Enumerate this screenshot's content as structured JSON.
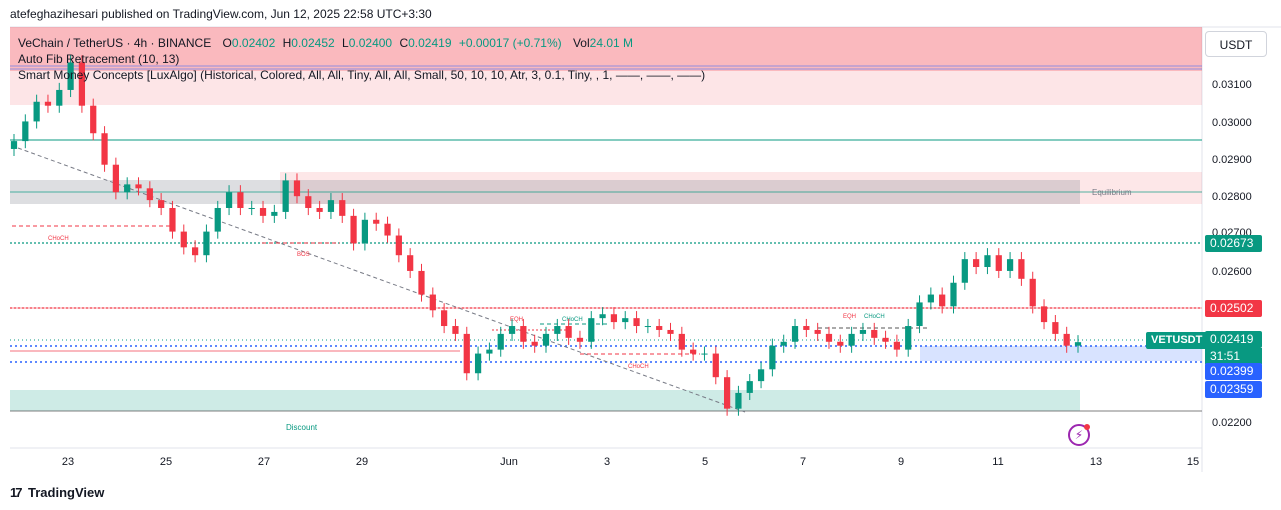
{
  "header": {
    "publisher_line": "atefeghazihesari published on TradingView.com, Jun 12, 2025 22:58 UTC+3:30"
  },
  "legend": {
    "symbol": "VeChain / TetherUS · 4h · BINANCE",
    "o_label": "O",
    "o_value": "0.02402",
    "h_label": "H",
    "h_value": "0.02452",
    "l_label": "L",
    "l_value": "0.02400",
    "c_label": "C",
    "c_value": "0.02419",
    "change": "+0.00017 (+0.71%)",
    "vol_label": "Vol",
    "vol_value": "24.01 M",
    "indicator1": "Auto Fib Retracement (10, 13)",
    "indicator2": "Smart Money Concepts [LuxAlgo] (Historical, Colored, All, All, Tiny, All, All, Small, 50, 10, 10, Atr, 3, 0.1, Tiny, , 1, ——, ——, ——)"
  },
  "price_axis": {
    "currency_button": "USDT",
    "ticks": [
      "0.03100",
      "0.03000",
      "0.02900",
      "0.02800",
      "0.02700",
      "0.02600",
      "0.02200"
    ],
    "labels": [
      {
        "text": "0.02673",
        "color": "#089981"
      },
      {
        "text": "0.02502",
        "color": "#f23645"
      },
      {
        "text": "0.02419",
        "color": "#089981"
      },
      {
        "text": "0.02399",
        "color": "#2962ff"
      },
      {
        "text": "0.02359",
        "color": "#2962ff"
      }
    ],
    "symbol_tag": "VETUSDT",
    "countdown": "31:51"
  },
  "time_axis": {
    "ticks": [
      "23",
      "25",
      "27",
      "29",
      "Jun",
      "3",
      "5",
      "7",
      "9",
      "11",
      "13",
      "15"
    ]
  },
  "annotations": {
    "equilibrium": "Equilibrium",
    "discount": "Discount",
    "choch": "CHoCH",
    "bos": "BOS",
    "eqh": "EQH"
  },
  "footer": {
    "brand": "TradingView"
  },
  "chart_data": {
    "type": "candlestick",
    "symbol": "VETUSDT",
    "timeframe": "4h",
    "y_range": [
      0.0215,
      0.0322
    ],
    "x_ticks": [
      "23",
      "25",
      "27",
      "29",
      "Jun",
      "3",
      "5",
      "7",
      "9",
      "11",
      "13",
      "15"
    ],
    "colors": {
      "up": "#089981",
      "down": "#f23645"
    },
    "horizontal_levels": [
      0.0295,
      0.02808,
      0.02673,
      0.02502,
      0.02419,
      0.02399,
      0.02359
    ],
    "closes": [
      0.0293,
      0.0298,
      0.0303,
      0.0302,
      0.0306,
      0.0313,
      0.0302,
      0.0295,
      0.0287,
      0.028,
      0.0282,
      0.0281,
      0.0278,
      0.0276,
      0.027,
      0.0266,
      0.0264,
      0.027,
      0.0276,
      0.028,
      0.0276,
      0.0276,
      0.0274,
      0.0275,
      0.0283,
      0.0279,
      0.0276,
      0.0275,
      0.0278,
      0.0274,
      0.0267,
      0.0273,
      0.0272,
      0.0269,
      0.0264,
      0.026,
      0.0254,
      0.025,
      0.0246,
      0.0244,
      0.0234,
      0.0239,
      0.024,
      0.0244,
      0.0246,
      0.0242,
      0.0241,
      0.0244,
      0.0246,
      0.0243,
      0.0242,
      0.0248,
      0.0249,
      0.0247,
      0.0248,
      0.0246,
      0.0246,
      0.0245,
      0.0244,
      0.024,
      0.0239,
      0.0239,
      0.0233,
      0.0225,
      0.0229,
      0.0232,
      0.0235,
      0.0241,
      0.0242,
      0.0246,
      0.0245,
      0.0244,
      0.0242,
      0.0241,
      0.0244,
      0.0245,
      0.0243,
      0.0242,
      0.024,
      0.0246,
      0.0252,
      0.0254,
      0.0251,
      0.0257,
      0.0263,
      0.0261,
      0.0264,
      0.026,
      0.0263,
      0.0258,
      0.0251,
      0.0247,
      0.0244,
      0.0241,
      0.02419
    ]
  }
}
